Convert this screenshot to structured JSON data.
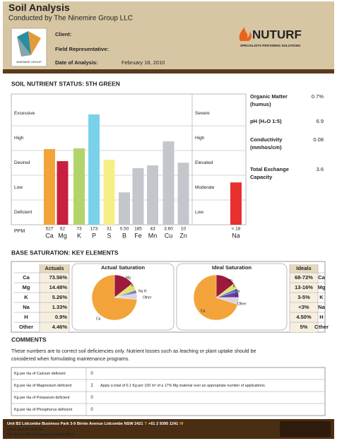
{
  "header": {
    "title": "Soil Analysis",
    "subtitle": "Conducted by The Ninemire Group LLC",
    "client_logo_text": "NINEMIRE GROUP",
    "field_labels": [
      "Client:",
      "Field Representative:",
      "Date of Analysis:"
    ],
    "date_of_analysis": "February 18, 2010",
    "brand": "NUTURF",
    "tagline": "SPECIALISTS PROVIDING SOLUTIONS"
  },
  "nutrient_status": {
    "title": "SOIL NUTRIENT STATUS:  5TH GREEN",
    "unit_label": "PPM",
    "level_range": [
      0,
      5
    ],
    "left_bands": [
      "Deficient",
      "Low",
      "Desired",
      "High",
      "Excessive"
    ],
    "right_bands": [
      "Low",
      "Moderate",
      "Elevated",
      "High",
      "Severe"
    ],
    "nutrients": [
      {
        "symbol": "Ca",
        "ppm": "527",
        "level": 3.06,
        "color": "#f2a43a"
      },
      {
        "symbol": "Mg",
        "ppm": "62",
        "level": 2.57,
        "color": "#c8203e"
      },
      {
        "symbol": "K",
        "ppm": "73",
        "level": 3.09,
        "color": "#b2d46a"
      },
      {
        "symbol": "P",
        "ppm": "173",
        "level": 4.46,
        "color": "#7ad2ea"
      },
      {
        "symbol": "S",
        "ppm": "31",
        "level": 2.63,
        "color": "#f8ee86"
      },
      {
        "symbol": "B",
        "ppm": "0.50",
        "level": 1.31,
        "color": "#c3c7cc"
      },
      {
        "symbol": "Fe",
        "ppm": "185",
        "level": 2.29,
        "color": "#c3c7cc"
      },
      {
        "symbol": "Mn",
        "ppm": "43",
        "level": 2.4,
        "color": "#c3c7cc"
      },
      {
        "symbol": "Cu",
        "ppm": "3.60",
        "level": 3.37,
        "color": "#c3c7cc"
      },
      {
        "symbol": "Zn",
        "ppm": "10",
        "level": 2.51,
        "color": "#c3c7cc"
      }
    ],
    "sodium": {
      "symbol": "Na",
      "ppm": "< 18",
      "level": 1.71,
      "color": "#e8302e"
    }
  },
  "soil_properties": [
    {
      "label": [
        "Organic Matter",
        "(humus)"
      ],
      "value": "0.7%"
    },
    {
      "label": [
        "pH (H₂O 1:5)"
      ],
      "value": "6.9"
    },
    {
      "label": [
        "Conductivity",
        "(mmhos/cm)"
      ],
      "value": "0.08"
    },
    {
      "label": [
        "Total Exchange",
        "Capacity"
      ],
      "value": "3.6"
    }
  ],
  "base_saturation": {
    "title": "BASE SATURATION: KEY ELEMENTS",
    "actuals_header": "Actuals",
    "ideals_header": "Ideals",
    "actual_chart_title": "Actual Saturation",
    "ideal_chart_title": "Ideal Saturation",
    "colors": [
      "#f2a43a",
      "#9e1a3c",
      "#dfe36a",
      "#4a6fc8",
      "#6a3fa0",
      "#d8d4e4"
    ],
    "rows": [
      {
        "element": "Ca",
        "actual": {
          "value": 73.56,
          "label": "73.56%"
        },
        "ideal": "68-72%"
      },
      {
        "element": "Mg",
        "actual": {
          "value": 14.48,
          "label": "14.48%"
        },
        "ideal": "13-16%"
      },
      {
        "element": "K",
        "actual": {
          "value": 5.26,
          "label": "5.26%"
        },
        "ideal": "3-5%"
      },
      {
        "element": "Na",
        "actual": {
          "value": 1.33,
          "label": "1.33%"
        },
        "ideal": "<3%"
      },
      {
        "element": "H",
        "actual": {
          "value": 0.9,
          "label": "0.9%"
        },
        "ideal": "4.50%"
      },
      {
        "element": "Other",
        "actual": {
          "value": 4.46,
          "label": "4.46%"
        },
        "ideal": "5%"
      }
    ],
    "actual_pie_labels": [
      "Mg",
      "K",
      "Na H",
      "Other",
      "Ca"
    ],
    "ideal_pie": {
      "slices": [
        70,
        14.5,
        4,
        2,
        4.5,
        5
      ],
      "labels": [
        "Mg",
        "K",
        "Na",
        "H",
        "Other",
        "Ca"
      ]
    }
  },
  "comments": {
    "title": "COMMENTS",
    "lines": [
      "These numbers are to correct soil deficiencies only. Nutrient losses such as leaching or plant uptake should be",
      "considered when formulating maintenance programs."
    ]
  },
  "deficiencies": [
    {
      "label": "Kg per Ha of Calcium deficient",
      "amount": 0
    },
    {
      "label": "Kg per Ha of Magnesium deficient",
      "amount": 2,
      "note": "Apply a total of 0.1 Kg per 100 m² of a 17% Mg material over an appropriate number of applications."
    },
    {
      "label": "Kg per Ha of Potassium deficient",
      "amount": 0
    },
    {
      "label": "Kg per Ha of Phosphorus deficient",
      "amount": 0
    }
  ],
  "footer": {
    "address": "Unit B2 Lidcombe Business Park 3-9 Birnie Avenue Lidcombe NSW 2421",
    "phone_marker": "T",
    "phone": "+61 2 9395 1241",
    "web_marker": "W",
    "web": "www.nuturf.com.au",
    "po_box": "PO Box 6300 Silverwater NSW 1811",
    "date": "18 February 2010"
  }
}
